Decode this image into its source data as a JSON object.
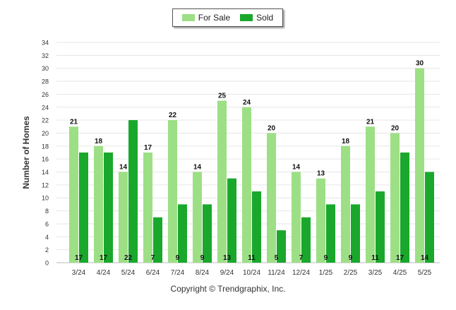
{
  "legend": {
    "for_sale": "For Sale",
    "sold": "Sold"
  },
  "footer": {
    "copyright": "Copyright © Trendgraphix, Inc."
  },
  "colors": {
    "for_sale": "#9ddf85",
    "sold": "#19a82c",
    "grid": "#e6e6e6"
  },
  "chart_data": {
    "type": "bar",
    "ylabel": "Number of Homes",
    "xlabel": "",
    "ylim": [
      0,
      34
    ],
    "yticks": [
      0,
      2,
      4,
      6,
      8,
      10,
      12,
      14,
      16,
      18,
      20,
      22,
      24,
      26,
      28,
      30,
      32,
      34
    ],
    "grid": true,
    "legend_position": "top-center",
    "categories": [
      "3/24",
      "4/24",
      "5/24",
      "6/24",
      "7/24",
      "8/24",
      "9/24",
      "10/24",
      "11/24",
      "12/24",
      "1/25",
      "2/25",
      "3/25",
      "4/25",
      "5/25"
    ],
    "series": [
      {
        "name": "For Sale",
        "values": [
          21,
          18,
          14,
          17,
          22,
          14,
          25,
          24,
          20,
          14,
          13,
          18,
          21,
          20,
          30
        ]
      },
      {
        "name": "Sold",
        "values": [
          17,
          17,
          22,
          7,
          9,
          9,
          13,
          11,
          5,
          7,
          9,
          9,
          11,
          17,
          14
        ]
      }
    ]
  }
}
